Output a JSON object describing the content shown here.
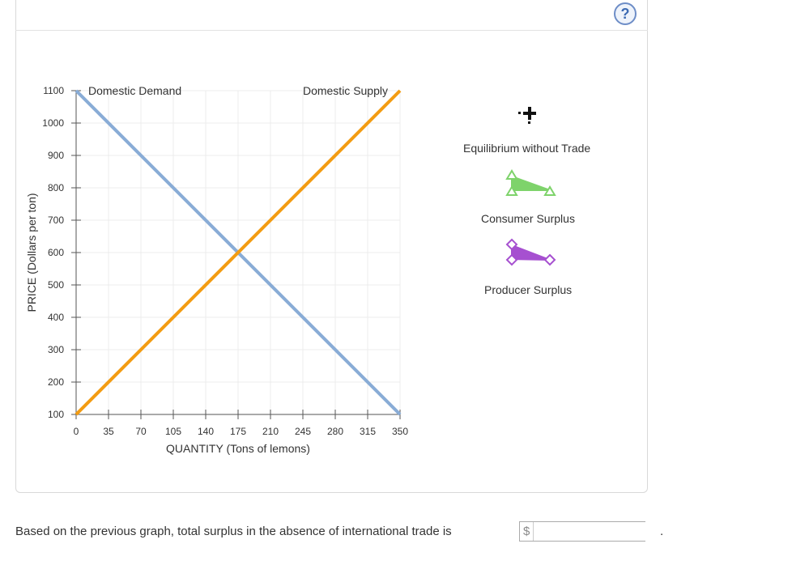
{
  "help_icon": "?",
  "chart_data": {
    "type": "line",
    "xlabel": "QUANTITY (Tons of lemons)",
    "ylabel": "PRICE (Dollars per ton)",
    "xlim": [
      0,
      350
    ],
    "ylim": [
      100,
      1100
    ],
    "x_ticks": [
      0,
      35,
      70,
      105,
      140,
      175,
      210,
      245,
      280,
      315,
      350
    ],
    "y_ticks": [
      100,
      200,
      300,
      400,
      500,
      600,
      700,
      800,
      900,
      1000,
      1100
    ],
    "grid": true,
    "series": [
      {
        "name": "Domestic Demand",
        "color": "#89acd6",
        "x": [
          0,
          350
        ],
        "y": [
          1100,
          100
        ]
      },
      {
        "name": "Domestic Supply",
        "color": "#f39c12",
        "x": [
          0,
          350
        ],
        "y": [
          100,
          1100
        ]
      }
    ],
    "equilibrium": {
      "x": 175,
      "y": 600
    }
  },
  "legend": {
    "equilibrium": {
      "label": "Equilibrium without Trade",
      "icon": "black-cross-icon"
    },
    "consumer_surplus": {
      "label": "Consumer Surplus",
      "icon": "green-triangle-icon",
      "color": "#7ed36b"
    },
    "producer_surplus": {
      "label": "Producer Surplus",
      "icon": "purple-triangle-icon",
      "color": "#a650d0"
    }
  },
  "question": {
    "text": "Based on the previous graph, total surplus in the absence of international trade is",
    "currency": "$",
    "answer_value": "",
    "trailing": "."
  }
}
